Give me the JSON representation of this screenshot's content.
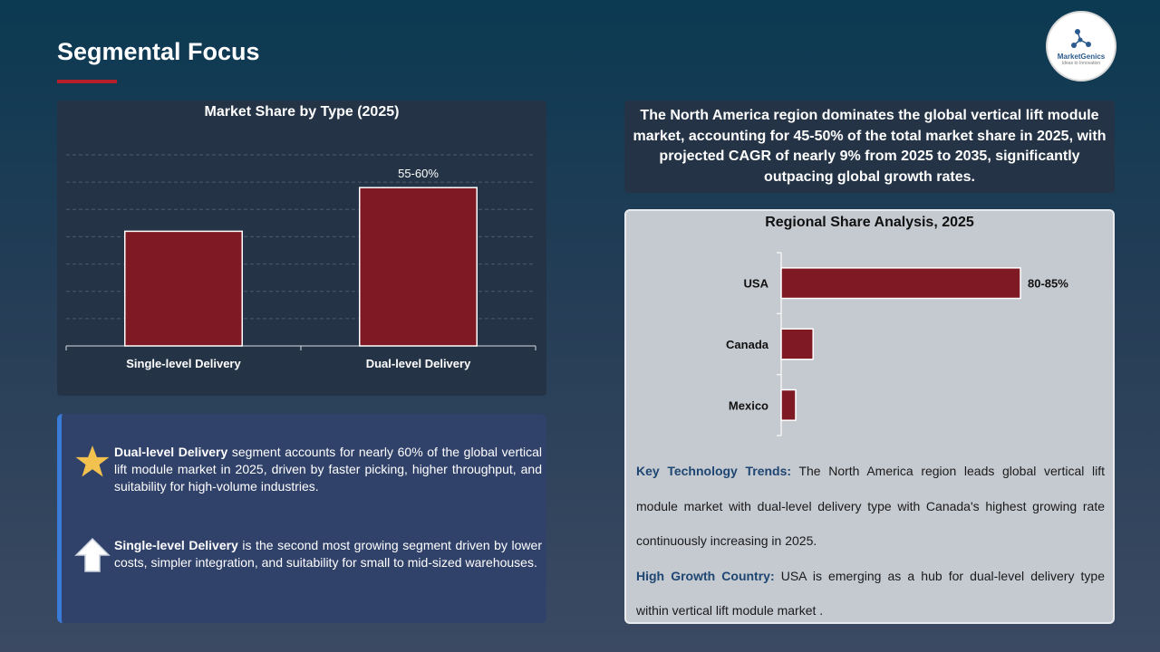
{
  "page": {
    "title": "Segmental Focus",
    "logo": {
      "name": "MarketGenics",
      "tagline": "Ideas to Innovation"
    }
  },
  "left_insights": [
    {
      "icon": "star-icon",
      "bold": "Dual-level Delivery",
      "text": " segment accounts for nearly 60% of the global vertical lift module market in 2025, driven by faster picking, higher throughput, and suitability for high-volume industries."
    },
    {
      "icon": "up-arrow-icon",
      "bold": "Single-level Delivery",
      "text": " is the second most growing segment driven by lower costs, simpler integration, and suitability for small to mid-sized warehouses."
    }
  ],
  "summary": "The North America region dominates the global vertical lift module market, accounting for 45-50% of the total market share in 2025, with projected CAGR of nearly 9% from 2025 to 2035, significantly outpacing global growth rates.",
  "trends": {
    "tech_label": "Key Technology Trends:",
    "tech_text": " The North America region leads global vertical lift module market with dual-level delivery type with Canada's highest growing rate continuously increasing in 2025.",
    "growth_label": "High Growth Country:",
    "growth_text": " USA is emerging as a hub for dual-level delivery type within vertical lift module market ."
  },
  "colors": {
    "bar": "#7f1a24",
    "accent_line": "#b51f2a",
    "label_blue": "#1e4672"
  },
  "chart_data": [
    {
      "type": "bar",
      "title": "Market Share by Type (2025)",
      "categories": [
        "Single-level Delivery",
        "Dual-level Delivery"
      ],
      "values": [
        42,
        58
      ],
      "data_labels": [
        "",
        "55-60%"
      ],
      "ylim": [
        0,
        70
      ],
      "grid": true,
      "axis_values_shown": false
    },
    {
      "type": "bar",
      "orientation": "horizontal",
      "title": "Regional Share Analysis, 2025",
      "categories": [
        "USA",
        "Canada",
        "Mexico"
      ],
      "values": [
        82.5,
        11,
        5
      ],
      "data_labels": [
        "80-85%",
        "",
        ""
      ],
      "xlim": [
        0,
        100
      ],
      "grid": false
    }
  ]
}
